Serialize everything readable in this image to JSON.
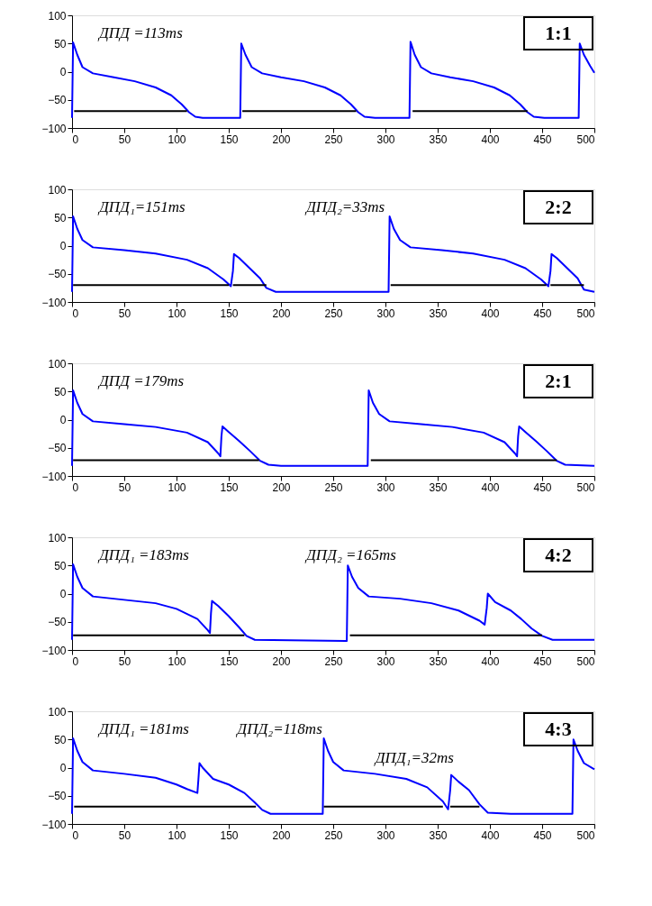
{
  "chart_data": [
    {
      "type": "line",
      "xlim": [
        0,
        500
      ],
      "ylim": [
        -100,
        100
      ],
      "xticks": [
        0,
        50,
        100,
        150,
        200,
        250,
        300,
        350,
        400,
        450,
        500
      ],
      "yticks": [
        -100,
        -50,
        0,
        50,
        100
      ],
      "grid": false,
      "annotations": [
        "1:1",
        "ДПД =113ms"
      ],
      "series": [
        {
          "color": "#0000ff",
          "x": [
            0,
            1,
            5,
            10,
            20,
            40,
            60,
            80,
            95,
            105,
            112,
            118,
            125,
            161,
            162,
            166,
            172,
            182,
            200,
            222,
            242,
            257,
            267,
            274,
            280,
            290,
            323,
            324,
            328,
            334,
            344,
            362,
            384,
            404,
            419,
            429,
            436,
            442,
            452,
            485,
            486,
            490,
            496,
            500
          ],
          "values": [
            -82,
            52,
            30,
            8,
            -3,
            -10,
            -17,
            -28,
            -42,
            -58,
            -72,
            -80,
            -82,
            -82,
            50,
            30,
            8,
            -3,
            -10,
            -17,
            -28,
            -42,
            -58,
            -72,
            -80,
            -82,
            -82,
            53,
            30,
            8,
            -3,
            -10,
            -17,
            -28,
            -42,
            -58,
            -72,
            -80,
            -82,
            -82,
            50,
            30,
            10,
            -2
          ]
        },
        {
          "type": "line",
          "color": "#000000",
          "x": [
            2,
            110
          ],
          "values": [
            -70,
            -70
          ]
        },
        {
          "type": "line",
          "color": "#000000",
          "x": [
            163,
            272
          ],
          "values": [
            -70,
            -70
          ]
        },
        {
          "type": "line",
          "color": "#000000",
          "x": [
            326,
            436
          ],
          "values": [
            -70,
            -70
          ]
        }
      ]
    },
    {
      "type": "line",
      "xlim": [
        0,
        500
      ],
      "ylim": [
        -100,
        100
      ],
      "xticks": [
        0,
        50,
        100,
        150,
        200,
        250,
        300,
        350,
        400,
        450,
        500
      ],
      "yticks": [
        -100,
        -50,
        0,
        50,
        100
      ],
      "grid": false,
      "annotations": [
        "2:2",
        "ДПД₁=151ms",
        "ДПД₂=33ms"
      ],
      "series": [
        {
          "color": "#0000ff",
          "x": [
            0,
            1,
            5,
            10,
            20,
            50,
            80,
            110,
            130,
            145,
            152,
            154,
            155,
            160,
            170,
            180,
            186,
            195,
            303,
            304,
            308,
            314,
            324,
            354,
            384,
            414,
            434,
            449,
            456,
            458,
            459,
            464,
            474,
            484,
            490,
            500
          ],
          "values": [
            -82,
            52,
            30,
            10,
            -3,
            -8,
            -14,
            -25,
            -40,
            -60,
            -72,
            -45,
            -15,
            -22,
            -40,
            -58,
            -75,
            -82,
            -82,
            52,
            30,
            10,
            -3,
            -8,
            -14,
            -25,
            -40,
            -60,
            -72,
            -45,
            -15,
            -22,
            -40,
            -58,
            -78,
            -82
          ]
        },
        {
          "type": "line",
          "color": "#000000",
          "x": [
            1,
            150
          ],
          "values": [
            -70,
            -70
          ]
        },
        {
          "type": "line",
          "color": "#000000",
          "x": [
            154,
            186
          ],
          "values": [
            -70,
            -70
          ]
        },
        {
          "type": "line",
          "color": "#000000",
          "x": [
            305,
            454
          ],
          "values": [
            -70,
            -70
          ]
        },
        {
          "type": "line",
          "color": "#000000",
          "x": [
            458,
            490
          ],
          "values": [
            -70,
            -70
          ]
        }
      ]
    },
    {
      "type": "line",
      "xlim": [
        0,
        500
      ],
      "ylim": [
        -100,
        100
      ],
      "xticks": [
        0,
        50,
        100,
        150,
        200,
        250,
        300,
        350,
        400,
        450,
        500
      ],
      "yticks": [
        -100,
        -50,
        0,
        50,
        100
      ],
      "grid": false,
      "annotations": [
        "2:1",
        "ДПД =179ms"
      ],
      "series": [
        {
          "color": "#0000ff",
          "x": [
            0,
            1,
            5,
            10,
            20,
            50,
            80,
            110,
            130,
            140,
            142,
            143,
            144,
            150,
            160,
            170,
            180,
            188,
            200,
            283,
            284,
            288,
            294,
            304,
            334,
            364,
            394,
            414,
            424,
            426,
            427,
            428,
            434,
            444,
            454,
            464,
            472,
            500
          ],
          "values": [
            -82,
            52,
            30,
            10,
            -3,
            -8,
            -13,
            -23,
            -40,
            -60,
            -65,
            -30,
            -12,
            -22,
            -38,
            -55,
            -73,
            -80,
            -82,
            -82,
            52,
            30,
            10,
            -3,
            -8,
            -13,
            -23,
            -40,
            -60,
            -65,
            -30,
            -12,
            -22,
            -38,
            -55,
            -73,
            -80,
            -82
          ]
        },
        {
          "type": "line",
          "color": "#000000",
          "x": [
            1,
            179
          ],
          "values": [
            -72,
            -72
          ]
        },
        {
          "type": "line",
          "color": "#000000",
          "x": [
            286,
            464
          ],
          "values": [
            -72,
            -72
          ]
        }
      ]
    },
    {
      "type": "line",
      "xlim": [
        0,
        500
      ],
      "ylim": [
        -100,
        100
      ],
      "xticks": [
        0,
        50,
        100,
        150,
        200,
        250,
        300,
        350,
        400,
        450,
        500
      ],
      "yticks": [
        -100,
        -50,
        0,
        50,
        100
      ],
      "grid": false,
      "annotations": [
        "4:2",
        "ДПД₁ =183ms",
        "ДПД₂ =165ms"
      ],
      "series": [
        {
          "color": "#0000ff",
          "x": [
            0,
            1,
            5,
            10,
            20,
            50,
            80,
            100,
            120,
            130,
            132,
            133,
            134,
            140,
            150,
            160,
            167,
            175,
            262,
            263,
            264,
            268,
            274,
            284,
            314,
            344,
            370,
            390,
            395,
            397,
            398,
            405,
            420,
            430,
            440,
            450,
            460,
            500
          ],
          "values": [
            -82,
            52,
            30,
            10,
            -5,
            -11,
            -17,
            -27,
            -45,
            -65,
            -70,
            -35,
            -13,
            -22,
            -40,
            -60,
            -75,
            -82,
            -84,
            -84,
            50,
            30,
            10,
            -5,
            -9,
            -17,
            -30,
            -48,
            -55,
            -25,
            0,
            -15,
            -30,
            -45,
            -62,
            -75,
            -82,
            -82
          ]
        },
        {
          "type": "line",
          "color": "#000000",
          "x": [
            1,
            165
          ],
          "values": [
            -74,
            -74
          ]
        },
        {
          "type": "line",
          "color": "#000000",
          "x": [
            266,
            450
          ],
          "values": [
            -74,
            -74
          ]
        }
      ]
    },
    {
      "type": "line",
      "xlim": [
        0,
        500
      ],
      "ylim": [
        -100,
        100
      ],
      "xticks": [
        0,
        50,
        100,
        150,
        200,
        250,
        300,
        350,
        400,
        450,
        500
      ],
      "yticks": [
        -100,
        -50,
        0,
        50,
        100
      ],
      "grid": false,
      "annotations": [
        "4:3",
        "ДПД₁ =181ms",
        "ДПД₂=118ms",
        "ДПД₁=32ms"
      ],
      "series": [
        {
          "color": "#0000ff",
          "x": [
            0,
            1,
            5,
            10,
            20,
            50,
            80,
            100,
            110,
            120,
            121,
            122,
            125,
            135,
            150,
            165,
            175,
            182,
            190,
            240,
            241,
            245,
            250,
            260,
            290,
            320,
            340,
            355,
            360,
            362,
            363,
            370,
            380,
            390,
            398,
            420,
            479,
            480,
            484,
            490,
            500
          ],
          "values": [
            -82,
            52,
            30,
            10,
            -5,
            -11,
            -18,
            -30,
            -38,
            -45,
            -20,
            8,
            0,
            -20,
            -30,
            -45,
            -62,
            -75,
            -82,
            -82,
            52,
            30,
            10,
            -5,
            -11,
            -20,
            -35,
            -60,
            -74,
            -40,
            -13,
            -25,
            -40,
            -65,
            -80,
            -82,
            -82,
            50,
            30,
            8,
            -3
          ]
        },
        {
          "type": "line",
          "color": "#000000",
          "x": [
            2,
            176
          ],
          "values": [
            -69,
            -69
          ]
        },
        {
          "type": "line",
          "color": "#000000",
          "x": [
            241,
            355
          ],
          "values": [
            -69,
            -69
          ]
        },
        {
          "type": "line",
          "color": "#000000",
          "x": [
            362,
            390
          ],
          "values": [
            -69,
            -69
          ]
        }
      ]
    }
  ]
}
